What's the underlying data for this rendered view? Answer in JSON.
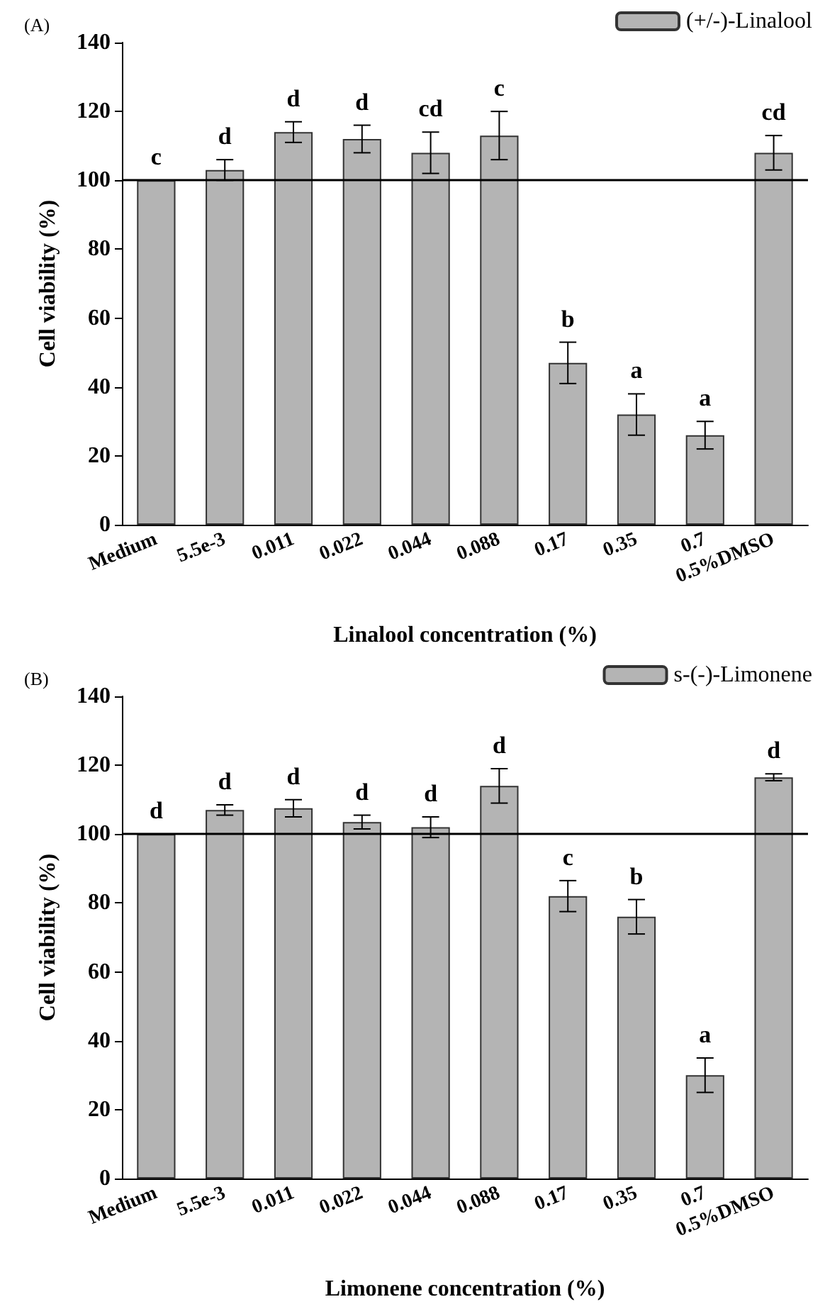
{
  "chart_data": [
    {
      "type": "bar",
      "title": "(A)",
      "xlabel": "Linalool concentration (%)",
      "ylabel": "Cell viability (%)",
      "categories": [
        "Medium",
        "5.5e-3",
        "0.011",
        "0.022",
        "0.044",
        "0.088",
        "0.17",
        "0.35",
        "0.7",
        "0.5%DMSO"
      ],
      "series": [
        {
          "name": "(+/-)-Linalool",
          "color": "#b4b4b4",
          "values": [
            100,
            103,
            114,
            112,
            108,
            113,
            47,
            32,
            26,
            108
          ],
          "errors": [
            null,
            3,
            3,
            4,
            6,
            7,
            6,
            6,
            4,
            5
          ]
        }
      ],
      "ylim": [
        0,
        140
      ],
      "yticks": [
        0,
        20,
        40,
        60,
        80,
        100,
        120,
        140
      ],
      "legend": "top right",
      "grid": false,
      "ref_lines": [
        {
          "axis": "y",
          "value": 100,
          "color": "#000000"
        }
      ],
      "annotations": [
        {
          "text": "c",
          "x": "Medium",
          "y": 100
        },
        {
          "text": "d",
          "x": "5.5e-3",
          "y": 106
        },
        {
          "text": "d",
          "x": "0.011",
          "y": 117
        },
        {
          "text": "d",
          "x": "0.022",
          "y": 116
        },
        {
          "text": "cd",
          "x": "0.044",
          "y": 114
        },
        {
          "text": "c",
          "x": "0.088",
          "y": 120
        },
        {
          "text": "b",
          "x": "0.17",
          "y": 53
        },
        {
          "text": "a",
          "x": "0.35",
          "y": 38
        },
        {
          "text": "a",
          "x": "0.7",
          "y": 30
        },
        {
          "text": "cd",
          "x": "0.5%DMSO",
          "y": 113
        }
      ]
    },
    {
      "type": "bar",
      "title": "(B)",
      "xlabel": "Limonene concentration (%)",
      "ylabel": "Cell viability (%)",
      "categories": [
        "Medium",
        "5.5e-3",
        "0.011",
        "0.022",
        "0.044",
        "0.088",
        "0.17",
        "0.35",
        "0.7",
        "0.5%DMSO"
      ],
      "series": [
        {
          "name": "s-(-)-Limonene",
          "color": "#b4b4b4",
          "values": [
            100,
            107,
            107.5,
            103.5,
            102,
            114,
            82,
            76,
            30,
            116.5
          ],
          "errors": [
            null,
            1.5,
            2.5,
            2,
            3,
            5,
            4.5,
            5,
            5,
            1
          ]
        }
      ],
      "ylim": [
        0,
        140
      ],
      "yticks": [
        0,
        20,
        40,
        60,
        80,
        100,
        120,
        140
      ],
      "legend": "top right",
      "grid": false,
      "ref_lines": [
        {
          "axis": "y",
          "value": 100,
          "color": "#000000"
        }
      ],
      "annotations": [
        {
          "text": "d",
          "x": "Medium",
          "y": 100
        },
        {
          "text": "d",
          "x": "5.5e-3",
          "y": 108.5
        },
        {
          "text": "d",
          "x": "0.011",
          "y": 110
        },
        {
          "text": "d",
          "x": "0.022",
          "y": 105.5
        },
        {
          "text": "d",
          "x": "0.044",
          "y": 105
        },
        {
          "text": "d",
          "x": "0.088",
          "y": 119
        },
        {
          "text": "c",
          "x": "0.17",
          "y": 86.5
        },
        {
          "text": "b",
          "x": "0.35",
          "y": 81
        },
        {
          "text": "a",
          "x": "0.7",
          "y": 35
        },
        {
          "text": "d",
          "x": "0.5%DMSO",
          "y": 117.5
        }
      ]
    }
  ]
}
